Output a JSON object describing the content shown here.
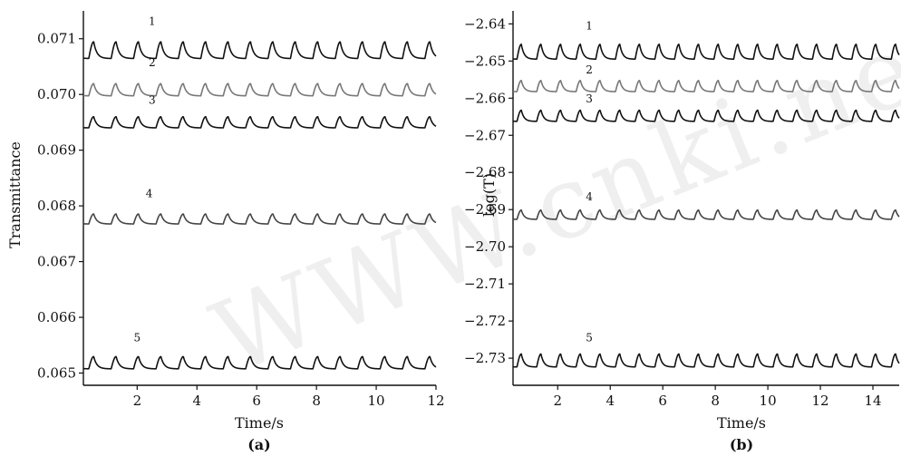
{
  "watermark": "WWW.cnki.net",
  "chart_data": [
    {
      "type": "line",
      "panel_label": "(a)",
      "xlabel": "Time/s",
      "ylabel": "Transmittance",
      "xlim": [
        0.2,
        12.0
      ],
      "ylim": [
        0.06478,
        0.0715
      ],
      "xticks": [
        2,
        4,
        6,
        8,
        10,
        12
      ],
      "yticks": [
        0.065,
        0.066,
        0.067,
        0.068,
        0.069,
        0.07,
        0.071
      ],
      "ytick_labels": [
        "0.065",
        "0.066",
        "0.067",
        "0.068",
        "0.069",
        "0.070",
        "0.071"
      ],
      "period": 0.75,
      "phase": 0.38,
      "series": [
        {
          "name": "1",
          "baseline": 0.07072,
          "amplitude": 0.0003,
          "color": "#111111",
          "label_x": 2.5,
          "label_y": 0.07125
        },
        {
          "name": "2",
          "baseline": 0.07003,
          "amplitude": 0.00022,
          "color": "#777777",
          "label_x": 2.5,
          "label_y": 0.07051
        },
        {
          "name": "3",
          "baseline": 0.06945,
          "amplitude": 0.0002,
          "color": "#111111",
          "label_x": 2.5,
          "label_y": 0.06983
        },
        {
          "name": "4",
          "baseline": 0.06772,
          "amplitude": 0.00018,
          "color": "#444444",
          "label_x": 2.4,
          "label_y": 0.06816
        },
        {
          "name": "5",
          "baseline": 0.06513,
          "amplitude": 0.00022,
          "color": "#111111",
          "label_x": 2.0,
          "label_y": 0.06557
        }
      ]
    },
    {
      "type": "line",
      "panel_label": "(b)",
      "xlabel": "Time/s",
      "ylabel": "log(T)",
      "xlim": [
        0.3,
        15.0
      ],
      "ylim": [
        -2.7373,
        -2.6365
      ],
      "xticks": [
        2,
        4,
        6,
        8,
        10,
        12,
        14
      ],
      "yticks": [
        -2.64,
        -2.65,
        -2.66,
        -2.67,
        -2.68,
        -2.69,
        -2.7,
        -2.71,
        -2.72,
        -2.73
      ],
      "ytick_labels": [
        "−2.64",
        "−2.65",
        "−2.66",
        "−2.67",
        "−2.68",
        "−2.69",
        "−2.70",
        "−2.71",
        "−2.72",
        "−2.73"
      ],
      "period": 0.75,
      "phase": 0.45,
      "series": [
        {
          "name": "1",
          "baseline": -2.6485,
          "amplitude": 0.004,
          "color": "#111111",
          "label_x": 3.2,
          "label_y": -2.6415
        },
        {
          "name": "2",
          "baseline": -2.6575,
          "amplitude": 0.003,
          "color": "#777777",
          "label_x": 3.2,
          "label_y": -2.6533
        },
        {
          "name": "3",
          "baseline": -2.6655,
          "amplitude": 0.003,
          "color": "#111111",
          "label_x": 3.2,
          "label_y": -2.6612
        },
        {
          "name": "4",
          "baseline": -2.692,
          "amplitude": 0.0025,
          "color": "#444444",
          "label_x": 3.2,
          "label_y": -2.6875
        },
        {
          "name": "5",
          "baseline": -2.7315,
          "amplitude": 0.0035,
          "color": "#111111",
          "label_x": 3.2,
          "label_y": -2.7255
        }
      ]
    }
  ]
}
